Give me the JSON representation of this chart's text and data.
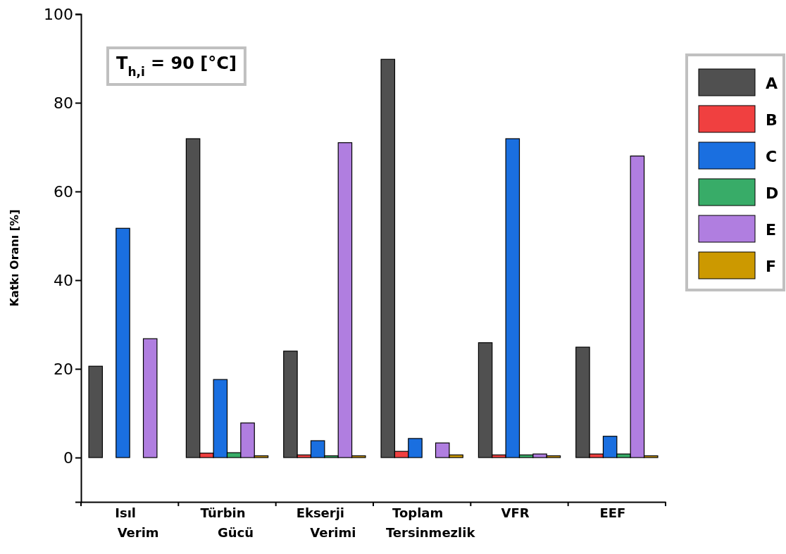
{
  "chart_data": {
    "type": "bar",
    "ylabel": "Katkı Oranı [%]",
    "categories": [
      "Isıl Verim",
      "Türbin Gücü",
      "Ekserji Verimi",
      "Toplam Tersinmezlik",
      "VFR",
      "EEF"
    ],
    "series": [
      {
        "name": "A",
        "color": "#505050",
        "values": [
          20.6,
          71.9,
          24,
          89.8,
          25.9,
          24.9
        ]
      },
      {
        "name": "B",
        "color": "#f04040",
        "values": [
          0,
          1,
          0.6,
          1.4,
          0.6,
          0.8
        ]
      },
      {
        "name": "C",
        "color": "#1a6fe0",
        "values": [
          51.7,
          17.6,
          3.8,
          4.3,
          71.9,
          4.8
        ]
      },
      {
        "name": "D",
        "color": "#38ac68",
        "values": [
          0,
          1.1,
          0.4,
          0,
          0.6,
          0.8
        ]
      },
      {
        "name": "E",
        "color": "#b07ee0",
        "values": [
          26.8,
          7.8,
          71,
          3.3,
          0.8,
          68
        ]
      },
      {
        "name": "F",
        "color": "#cc9900",
        "values": [
          0,
          0.4,
          0.4,
          0.6,
          0.4,
          0.4
        ]
      }
    ],
    "ylim": [
      -10,
      100
    ],
    "yticks": [
      0,
      20,
      40,
      60,
      80,
      100
    ],
    "legend": "right",
    "annotations": [
      "T$_{h,i}$ = 90 [°C]"
    ]
  }
}
